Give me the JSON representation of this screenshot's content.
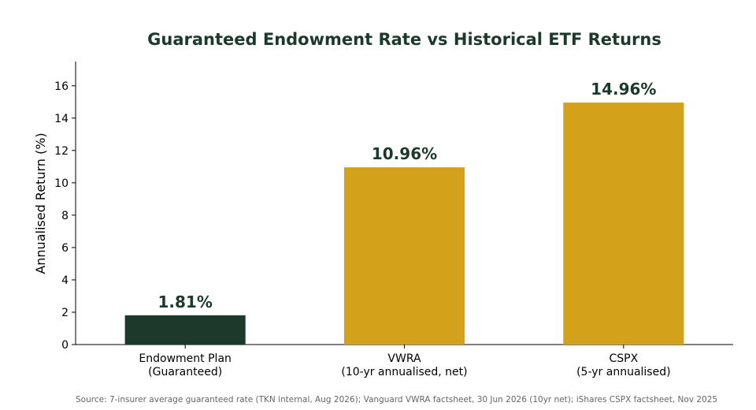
{
  "chart_data": {
    "type": "bar",
    "title": "Guaranteed Endowment Rate vs Historical ETF Returns",
    "ylabel": "Annualised Return (%)",
    "xlabel": "",
    "categories": [
      [
        "Endowment Plan",
        "(Guaranteed)"
      ],
      [
        "VWRA",
        "(10-yr annualised, net)"
      ],
      [
        "CSPX",
        "(5-yr annualised)"
      ]
    ],
    "values": [
      1.81,
      10.96,
      14.96
    ],
    "data_labels": [
      "1.81%",
      "10.96%",
      "14.96%"
    ],
    "bar_colors": [
      "#1c3a2c",
      "#d4a11b",
      "#d4a11b"
    ],
    "label_color": "#1b3a2c",
    "ylim": [
      0,
      17.5
    ],
    "yticks": [
      0,
      2,
      4,
      6,
      8,
      10,
      12,
      14,
      16
    ],
    "grid": false,
    "source": "Source: 7-insurer average guaranteed rate (TKN internal, Aug 2026); Vanguard VWRA factsheet, 30 Jun 2026 (10yr net); iShares CSPX factsheet, Nov 2025"
  }
}
